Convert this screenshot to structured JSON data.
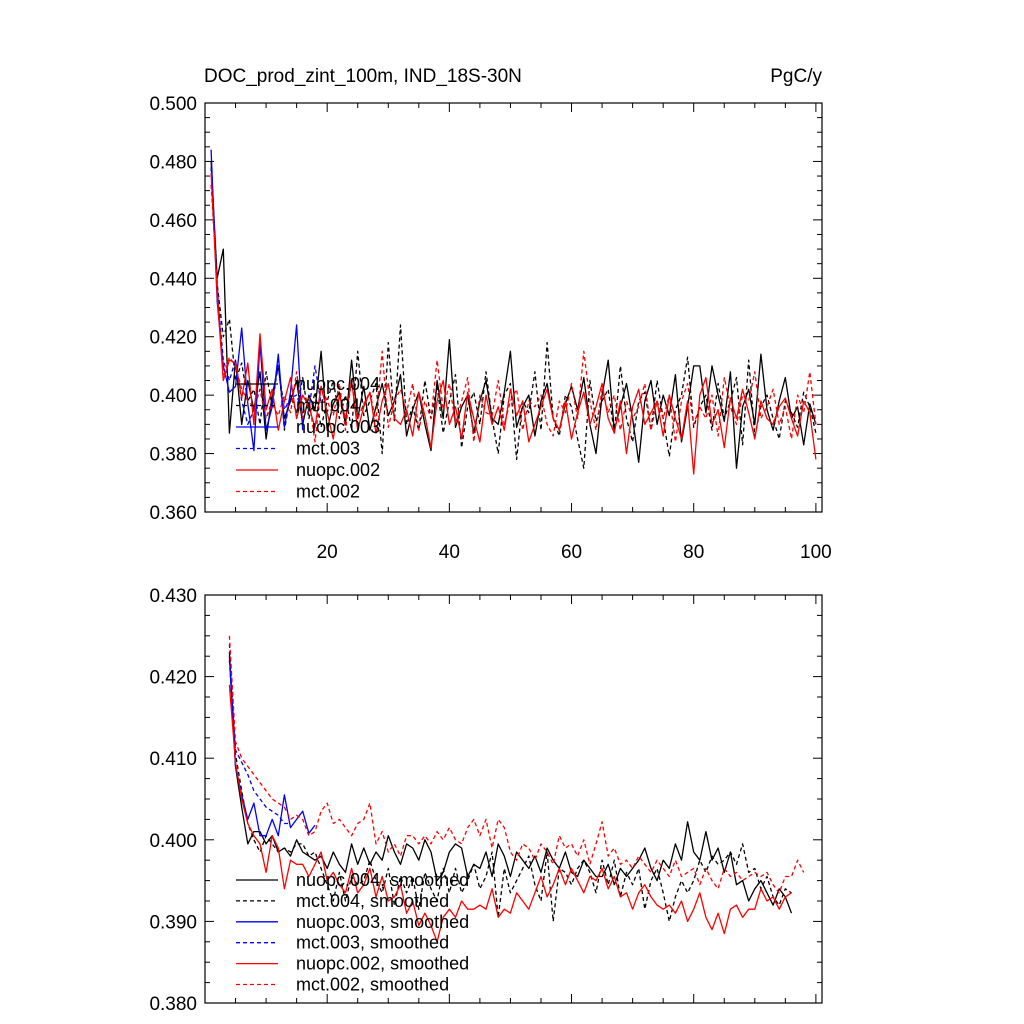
{
  "figure": {
    "title_left": "DOC_prod_zint_100m, IND_18S-30N",
    "title_right": "PgC/y"
  },
  "chart_data": [
    {
      "type": "line",
      "title": "DOC_prod_zint_100m, IND_18S-30N",
      "units": "PgC/y",
      "xlabel": "",
      "ylabel": "",
      "xlim": [
        0,
        101
      ],
      "ylim": [
        0.36,
        0.5
      ],
      "xticks": [
        20,
        40,
        60,
        80,
        100
      ],
      "xtick_labels": [
        "20",
        "40",
        "60",
        "80",
        "100"
      ],
      "yticks": [
        0.36,
        0.38,
        0.4,
        0.42,
        0.44,
        0.46,
        0.48,
        0.5
      ],
      "ytick_labels": [
        "0.360",
        "0.380",
        "0.400",
        "0.420",
        "0.440",
        "0.460",
        "0.480",
        "0.500"
      ],
      "grid": false,
      "legend_position": "lower-left",
      "series": [
        {
          "name": "nuopc.004",
          "color": "#000000",
          "dash": "solid",
          "x0": 1,
          "values": [
            0.48,
            0.44,
            0.45,
            0.387,
            0.412,
            0.39,
            0.405,
            0.395,
            0.408,
            0.385,
            0.4,
            0.41,
            0.392,
            0.398,
            0.405,
            0.39,
            0.4,
            0.395,
            0.415,
            0.388,
            0.397,
            0.401,
            0.39,
            0.412,
            0.392,
            0.403,
            0.388,
            0.396,
            0.404,
            0.393,
            0.398,
            0.407,
            0.386,
            0.395,
            0.401,
            0.39,
            0.381,
            0.405,
            0.392,
            0.419,
            0.389,
            0.396,
            0.4,
            0.387,
            0.398,
            0.405,
            0.392,
            0.39,
            0.401,
            0.415,
            0.389,
            0.396,
            0.4,
            0.386,
            0.398,
            0.404,
            0.392,
            0.388,
            0.397,
            0.403,
            0.395,
            0.406,
            0.39,
            0.38,
            0.4,
            0.412,
            0.388,
            0.396,
            0.404,
            0.392,
            0.377,
            0.398,
            0.405,
            0.39,
            0.4,
            0.393,
            0.407,
            0.384,
            0.396,
            0.41,
            0.41,
            0.394,
            0.41,
            0.4,
            0.391,
            0.408,
            0.375,
            0.396,
            0.402,
            0.39,
            0.414,
            0.395,
            0.388,
            0.398,
            0.406,
            0.392,
            0.396,
            0.383,
            0.397,
            0.39
          ]
        },
        {
          "name": "mct.004",
          "color": "#000000",
          "dash": "dash",
          "x0": 1,
          "values": [
            0.478,
            0.438,
            0.42,
            0.426,
            0.405,
            0.411,
            0.398,
            0.402,
            0.39,
            0.408,
            0.396,
            0.412,
            0.388,
            0.4,
            0.394,
            0.406,
            0.392,
            0.401,
            0.389,
            0.398,
            0.405,
            0.392,
            0.4,
            0.388,
            0.415,
            0.393,
            0.398,
            0.404,
            0.38,
            0.418,
            0.391,
            0.424,
            0.39,
            0.396,
            0.388,
            0.405,
            0.392,
            0.403,
            0.387,
            0.398,
            0.407,
            0.382,
            0.396,
            0.401,
            0.39,
            0.408,
            0.392,
            0.38,
            0.4,
            0.404,
            0.378,
            0.398,
            0.394,
            0.408,
            0.388,
            0.418,
            0.392,
            0.386,
            0.4,
            0.396,
            0.385,
            0.375,
            0.405,
            0.391,
            0.398,
            0.402,
            0.387,
            0.41,
            0.392,
            0.384,
            0.398,
            0.401,
            0.388,
            0.405,
            0.392,
            0.379,
            0.395,
            0.4,
            0.413,
            0.389,
            0.396,
            0.4,
            0.388,
            0.404,
            0.392,
            0.398,
            0.406,
            0.383,
            0.412,
            0.386,
            0.396,
            0.4,
            0.392,
            0.385,
            0.398,
            0.394,
            0.389,
            0.401,
            0.396,
            0.387
          ]
        },
        {
          "name": "nuopc.003",
          "color": "#0000ff",
          "dash": "solid",
          "x0": 1,
          "values": [
            0.484,
            0.432,
            0.41,
            0.401,
            0.403,
            0.423,
            0.397,
            0.381,
            0.418,
            0.388,
            0.396,
            0.414,
            0.389,
            0.401,
            0.424,
            0.388
          ]
        },
        {
          "name": "mct.003",
          "color": "#0000ff",
          "dash": "dash",
          "x0": 1,
          "values": [
            0.478,
            0.436,
            0.412,
            0.405,
            0.412,
            0.398,
            0.39,
            0.395,
            0.402,
            0.392,
            0.398,
            0.41,
            0.395,
            0.399,
            0.4,
            0.394,
            0.395,
            0.41,
            0.397
          ]
        },
        {
          "name": "nuopc.002",
          "color": "#ff0000",
          "dash": "solid",
          "x0": 1,
          "values": [
            0.476,
            0.434,
            0.405,
            0.412,
            0.411,
            0.399,
            0.411,
            0.39,
            0.421,
            0.395,
            0.402,
            0.388,
            0.398,
            0.406,
            0.392,
            0.4,
            0.396,
            0.389,
            0.403,
            0.394,
            0.385,
            0.4,
            0.392,
            0.405,
            0.388,
            0.396,
            0.401,
            0.387,
            0.398,
            0.404,
            0.392,
            0.39,
            0.395,
            0.386,
            0.401,
            0.393,
            0.382,
            0.398,
            0.405,
            0.39,
            0.396,
            0.385,
            0.401,
            0.392,
            0.384,
            0.4,
            0.39,
            0.396,
            0.388,
            0.402,
            0.393,
            0.398,
            0.384,
            0.39,
            0.396,
            0.402,
            0.392,
            0.388,
            0.398,
            0.385,
            0.394,
            0.401,
            0.39,
            0.396,
            0.404,
            0.392,
            0.387,
            0.398,
            0.38,
            0.396,
            0.402,
            0.39,
            0.394,
            0.398,
            0.386,
            0.4,
            0.392,
            0.385,
            0.398,
            0.373,
            0.4,
            0.406,
            0.39,
            0.395,
            0.382,
            0.399,
            0.392,
            0.402,
            0.394,
            0.385,
            0.398,
            0.392,
            0.39,
            0.396,
            0.399,
            0.392,
            0.386,
            0.398,
            0.394,
            0.378
          ]
        },
        {
          "name": "mct.002",
          "color": "#ff0000",
          "dash": "dash",
          "x0": 1,
          "values": [
            0.472,
            0.438,
            0.406,
            0.413,
            0.41,
            0.402,
            0.398,
            0.396,
            0.402,
            0.392,
            0.397,
            0.393,
            0.4,
            0.394,
            0.408,
            0.392,
            0.399,
            0.384,
            0.403,
            0.398,
            0.393,
            0.404,
            0.388,
            0.406,
            0.392,
            0.397,
            0.401,
            0.391,
            0.415,
            0.389,
            0.398,
            0.402,
            0.394,
            0.404,
            0.388,
            0.398,
            0.392,
            0.412,
            0.395,
            0.404,
            0.39,
            0.398,
            0.406,
            0.384,
            0.4,
            0.394,
            0.393,
            0.405,
            0.39,
            0.398,
            0.402,
            0.388,
            0.398,
            0.396,
            0.4,
            0.39,
            0.386,
            0.398,
            0.394,
            0.404,
            0.392,
            0.415,
            0.398,
            0.388,
            0.402,
            0.394,
            0.4,
            0.388,
            0.398,
            0.392,
            0.396,
            0.404,
            0.388,
            0.398,
            0.392,
            0.4,
            0.384,
            0.398,
            0.404,
            0.39,
            0.396,
            0.392,
            0.4,
            0.386,
            0.406,
            0.396,
            0.39,
            0.4,
            0.398,
            0.408,
            0.392,
            0.396,
            0.402,
            0.39,
            0.396,
            0.385,
            0.4,
            0.394,
            0.408,
            0.39
          ]
        }
      ]
    },
    {
      "type": "line",
      "title": "",
      "xlabel": "",
      "ylabel": "",
      "xlim": [
        0,
        101
      ],
      "ylim": [
        0.38,
        0.43
      ],
      "xticks": [
        20,
        40,
        60,
        80,
        100
      ],
      "xtick_labels": [],
      "yticks": [
        0.38,
        0.39,
        0.4,
        0.41,
        0.42,
        0.43
      ],
      "ytick_labels": [
        "0.380",
        "0.390",
        "0.400",
        "0.410",
        "0.420",
        "0.430"
      ],
      "grid": false,
      "legend_position": "lower-left",
      "series": [
        {
          "name": "nuopc.004, smoothed",
          "color": "#000000",
          "dash": "solid",
          "x0": 4,
          "values": [
            0.423,
            0.409,
            0.404,
            0.3995,
            0.401,
            0.401,
            0.3995,
            0.4005,
            0.3985,
            0.399,
            0.398,
            0.4,
            0.3985,
            0.398,
            0.3975,
            0.398,
            0.3965,
            0.3985,
            0.397,
            0.396,
            0.3995,
            0.397,
            0.399,
            0.397,
            0.3985,
            0.3975,
            0.4005,
            0.3985,
            0.397,
            0.3995,
            0.399,
            0.3975,
            0.4,
            0.3985,
            0.395,
            0.396,
            0.3985,
            0.3995,
            0.399,
            0.3955,
            0.397,
            0.3965,
            0.3985,
            0.3955,
            0.3995,
            0.398,
            0.3955,
            0.3985,
            0.3975,
            0.3965,
            0.398,
            0.396,
            0.399,
            0.3975,
            0.3965,
            0.3985,
            0.396,
            0.3955,
            0.3975,
            0.3965,
            0.3955,
            0.3955,
            0.397,
            0.3945,
            0.3965,
            0.3955,
            0.3965,
            0.3975,
            0.399,
            0.3965,
            0.395,
            0.3975,
            0.3965,
            0.3995,
            0.3975,
            0.4022,
            0.3985,
            0.3975,
            0.401,
            0.3975,
            0.399,
            0.396,
            0.3985,
            0.3945,
            0.395,
            0.3925,
            0.394,
            0.395,
            0.3935,
            0.392,
            0.394,
            0.393,
            0.391
          ]
        },
        {
          "name": "mct.004, smoothed",
          "color": "#000000",
          "dash": "dash",
          "x0": 4,
          "values": [
            0.422,
            0.4105,
            0.406,
            0.402,
            0.4,
            0.3985,
            0.4005,
            0.3995,
            0.3985,
            0.399,
            0.3985,
            0.3995,
            0.3995,
            0.398,
            0.3985,
            0.3965,
            0.3945,
            0.3925,
            0.396,
            0.3925,
            0.3955,
            0.3945,
            0.395,
            0.3975,
            0.395,
            0.3935,
            0.3965,
            0.392,
            0.3955,
            0.3935,
            0.3955,
            0.3915,
            0.396,
            0.394,
            0.3925,
            0.3965,
            0.3935,
            0.3965,
            0.3935,
            0.395,
            0.397,
            0.394,
            0.3955,
            0.3985,
            0.3905,
            0.3965,
            0.3935,
            0.395,
            0.3965,
            0.398,
            0.3945,
            0.3925,
            0.3985,
            0.39,
            0.3965,
            0.396,
            0.3945,
            0.3965,
            0.3975,
            0.396,
            0.3935,
            0.3975,
            0.3945,
            0.3975,
            0.393,
            0.396,
            0.3945,
            0.3965,
            0.3915,
            0.395,
            0.3965,
            0.3935,
            0.39,
            0.393,
            0.395,
            0.3935,
            0.395,
            0.3975,
            0.396,
            0.398,
            0.397,
            0.3975,
            0.3985,
            0.397,
            0.3995,
            0.396,
            0.3965,
            0.394,
            0.3955,
            0.393,
            0.392,
            0.394,
            0.3935
          ]
        },
        {
          "name": "nuopc.003, smoothed",
          "color": "#0000ff",
          "dash": "solid",
          "x0": 4,
          "values": [
            0.4225,
            0.409,
            0.4055,
            0.4025,
            0.4045,
            0.4005,
            0.4005,
            0.4025,
            0.4005,
            0.4055,
            0.4015,
            0.4025,
            0.4035,
            0.4008,
            0.4018
          ]
        },
        {
          "name": "mct.003, smoothed",
          "color": "#0000ff",
          "dash": "dash",
          "x0": 4,
          "values": [
            0.424,
            0.411,
            0.4095,
            0.408,
            0.406,
            0.405,
            0.404,
            0.4035,
            0.403,
            0.402,
            0.402
          ]
        },
        {
          "name": "nuopc.002, smoothed",
          "color": "#ff0000",
          "dash": "solid",
          "x0": 4,
          "values": [
            0.419,
            0.4095,
            0.405,
            0.402,
            0.4005,
            0.3995,
            0.396,
            0.4005,
            0.399,
            0.394,
            0.3975,
            0.397,
            0.397,
            0.3955,
            0.397,
            0.3985,
            0.395,
            0.396,
            0.3945,
            0.3935,
            0.3965,
            0.3935,
            0.3945,
            0.3965,
            0.393,
            0.3955,
            0.3925,
            0.393,
            0.3945,
            0.391,
            0.3925,
            0.3895,
            0.391,
            0.3895,
            0.3875,
            0.3905,
            0.3915,
            0.3905,
            0.3925,
            0.3915,
            0.3915,
            0.392,
            0.3915,
            0.394,
            0.3905,
            0.3915,
            0.391,
            0.3935,
            0.3925,
            0.3915,
            0.3935,
            0.3955,
            0.393,
            0.3945,
            0.3965,
            0.3945,
            0.3965,
            0.395,
            0.3935,
            0.3955,
            0.395,
            0.3965,
            0.394,
            0.3955,
            0.393,
            0.3935,
            0.3915,
            0.3935,
            0.3945,
            0.393,
            0.392,
            0.3915,
            0.392,
            0.391,
            0.3925,
            0.39,
            0.3915,
            0.3935,
            0.3905,
            0.389,
            0.391,
            0.3885,
            0.3915,
            0.392,
            0.3905,
            0.3915,
            0.3915,
            0.394,
            0.3925,
            0.393,
            0.3915,
            0.393,
            0.3935
          ]
        },
        {
          "name": "mct.002, smoothed",
          "color": "#ff0000",
          "dash": "dash",
          "x0": 4,
          "values": [
            0.425,
            0.412,
            0.41,
            0.409,
            0.408,
            0.407,
            0.406,
            0.405,
            0.4045,
            0.404,
            0.4025,
            0.403,
            0.4025,
            0.4005,
            0.401,
            0.4035,
            0.4045,
            0.402,
            0.4025,
            0.4015,
            0.4005,
            0.402,
            0.4025,
            0.4045,
            0.3995,
            0.401,
            0.3985,
            0.3995,
            0.398,
            0.4005,
            0.4005,
            0.3995,
            0.4005,
            0.3995,
            0.401,
            0.4,
            0.4015,
            0.4,
            0.3995,
            0.4015,
            0.4025,
            0.4005,
            0.4025,
            0.399,
            0.4025,
            0.4015,
            0.3985,
            0.3975,
            0.3995,
            0.399,
            0.3975,
            0.3995,
            0.3985,
            0.397,
            0.4005,
            0.399,
            0.3995,
            0.398,
            0.4,
            0.397,
            0.3995,
            0.4022,
            0.398,
            0.399,
            0.397,
            0.3975,
            0.3965,
            0.398,
            0.397,
            0.396,
            0.3975,
            0.3965,
            0.3955,
            0.3975,
            0.3955,
            0.396,
            0.3965,
            0.3945,
            0.3965,
            0.395,
            0.394,
            0.3965,
            0.3955,
            0.396,
            0.395,
            0.3955,
            0.396,
            0.3955,
            0.396,
            0.3945,
            0.3935,
            0.3955,
            0.3955,
            0.3975,
            0.396
          ]
        }
      ]
    }
  ]
}
